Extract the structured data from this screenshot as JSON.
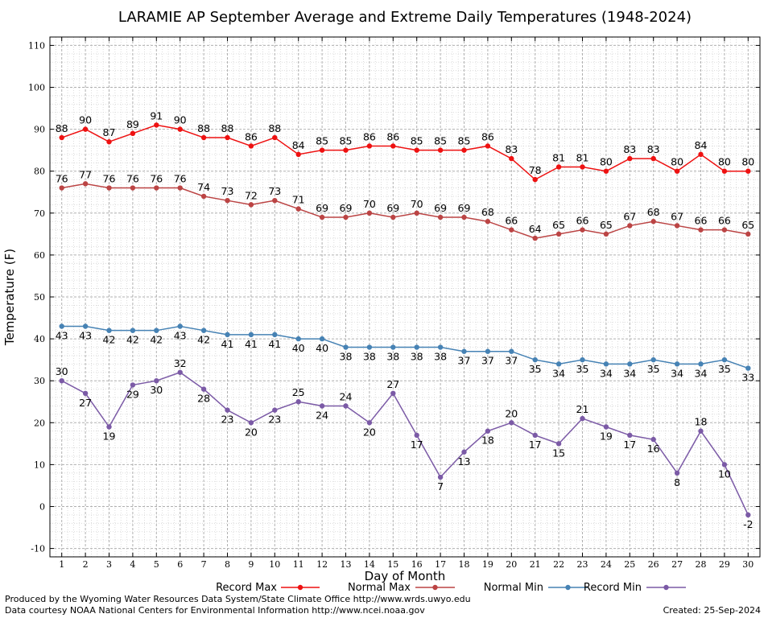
{
  "chart_data": {
    "type": "line",
    "title": "LARAMIE AP September Average and Extreme Daily Temperatures (1948-2024)",
    "xlabel": "Day of Month",
    "ylabel": "Temperature (F)",
    "ylim": [
      -12,
      112
    ],
    "xlim": [
      0.5,
      30.5
    ],
    "grid": true,
    "legend_position": "bottom",
    "x": [
      1,
      2,
      3,
      4,
      5,
      6,
      7,
      8,
      9,
      10,
      11,
      12,
      13,
      14,
      15,
      16,
      17,
      18,
      19,
      20,
      21,
      22,
      23,
      24,
      25,
      26,
      27,
      28,
      29,
      30
    ],
    "y_ticks": [
      -10,
      0,
      10,
      20,
      30,
      40,
      50,
      60,
      70,
      80,
      90,
      100,
      110
    ],
    "series": [
      {
        "name": "Record Max",
        "color": "#ee1111",
        "values": [
          88,
          90,
          87,
          89,
          91,
          90,
          88,
          88,
          86,
          88,
          84,
          85,
          85,
          86,
          86,
          85,
          85,
          85,
          86,
          83,
          78,
          81,
          81,
          80,
          83,
          83,
          80,
          84,
          80,
          80
        ]
      },
      {
        "name": "Normal Max",
        "color": "#bb4444",
        "values": [
          76,
          77,
          76,
          76,
          76,
          76,
          74,
          73,
          72,
          73,
          71,
          69,
          69,
          70,
          69,
          70,
          69,
          69,
          68,
          66,
          64,
          65,
          66,
          65,
          67,
          68,
          67,
          66,
          66,
          65
        ]
      },
      {
        "name": "Normal Min",
        "color": "#4682b4",
        "values": [
          43,
          43,
          42,
          42,
          42,
          43,
          42,
          41,
          41,
          41,
          40,
          40,
          38,
          38,
          38,
          38,
          38,
          37,
          37,
          37,
          35,
          34,
          35,
          34,
          34,
          35,
          34,
          34,
          35,
          33
        ]
      },
      {
        "name": "Record Min",
        "color": "#7b5aa6",
        "values": [
          30,
          27,
          19,
          29,
          30,
          32,
          28,
          23,
          20,
          23,
          25,
          24,
          24,
          20,
          27,
          17,
          7,
          13,
          18,
          20,
          17,
          15,
          21,
          19,
          17,
          16,
          8,
          18,
          10,
          -2
        ]
      }
    ]
  },
  "footer": {
    "producer": "Produced by the Wyoming Water Resources Data System/State Climate Office http://www.wrds.uwyo.edu",
    "courtesy": "Data courtesy NOAA National Centers for Environmental Information http://www.ncei.noaa.gov",
    "created": "Created:  25-Sep-2024"
  }
}
